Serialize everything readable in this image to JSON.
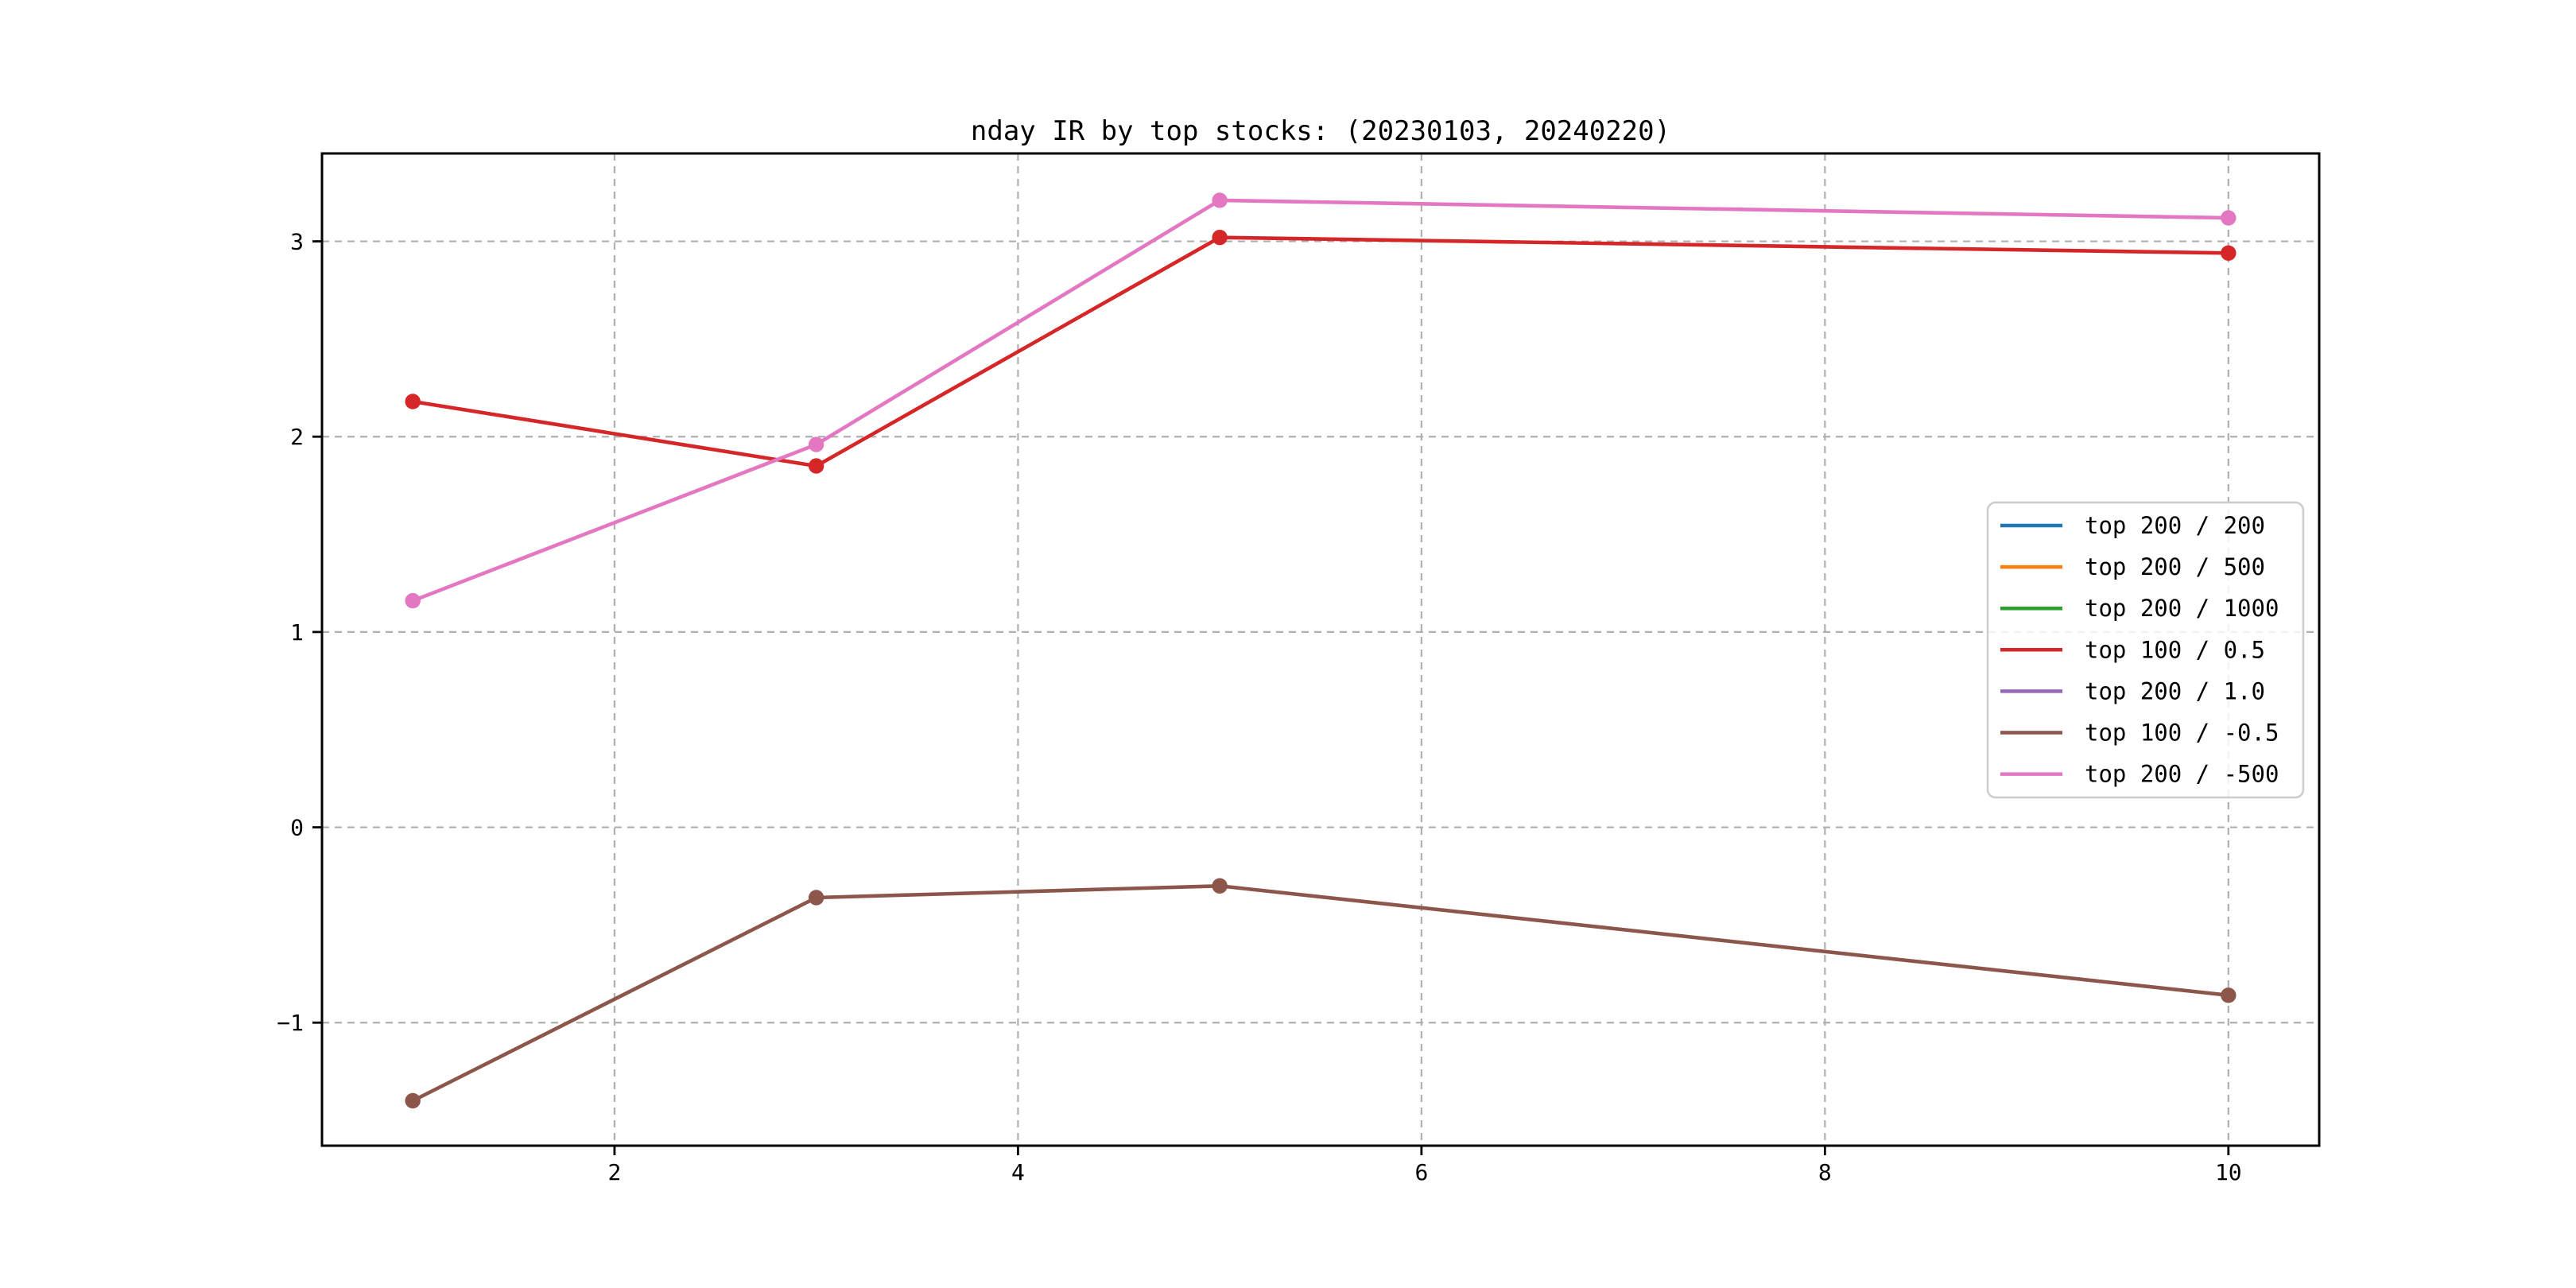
{
  "chart_data": {
    "type": "line",
    "title": "nday IR by top stocks: (20230103, 20240220)",
    "x": [
      1,
      3,
      5,
      10
    ],
    "series": [
      {
        "name": "top 200 / 200",
        "color": "#1f77b4",
        "values": []
      },
      {
        "name": "top 200 / 500",
        "color": "#ff7f0e",
        "values": []
      },
      {
        "name": "top 200 / 1000",
        "color": "#2ca02c",
        "values": []
      },
      {
        "name": "top 100 / 0.5",
        "color": "#d62728",
        "values": [
          2.18,
          1.85,
          3.02,
          2.94
        ]
      },
      {
        "name": "top 200 / 1.0",
        "color": "#9467bd",
        "values": []
      },
      {
        "name": "top 100 / -0.5",
        "color": "#8c564b",
        "values": [
          -1.4,
          -0.36,
          -0.3,
          -0.86
        ]
      },
      {
        "name": "top 200 / -500",
        "color": "#e377c2",
        "values": [
          1.16,
          1.96,
          3.21,
          3.12
        ]
      }
    ],
    "xticks": [
      2,
      4,
      6,
      8,
      10
    ],
    "yticks": [
      3,
      2,
      1,
      0,
      -1
    ],
    "xlim": [
      0.55,
      10.45
    ],
    "ylim": [
      -1.63,
      3.45
    ],
    "xlabel": "",
    "ylabel": "",
    "grid": "dashed",
    "grid_color": "#b0b0b0",
    "axis_color": "#000000",
    "background": "#ffffff",
    "legend_position": "center-right",
    "legend_frame_color": "#cccccc",
    "marker": "circle"
  }
}
